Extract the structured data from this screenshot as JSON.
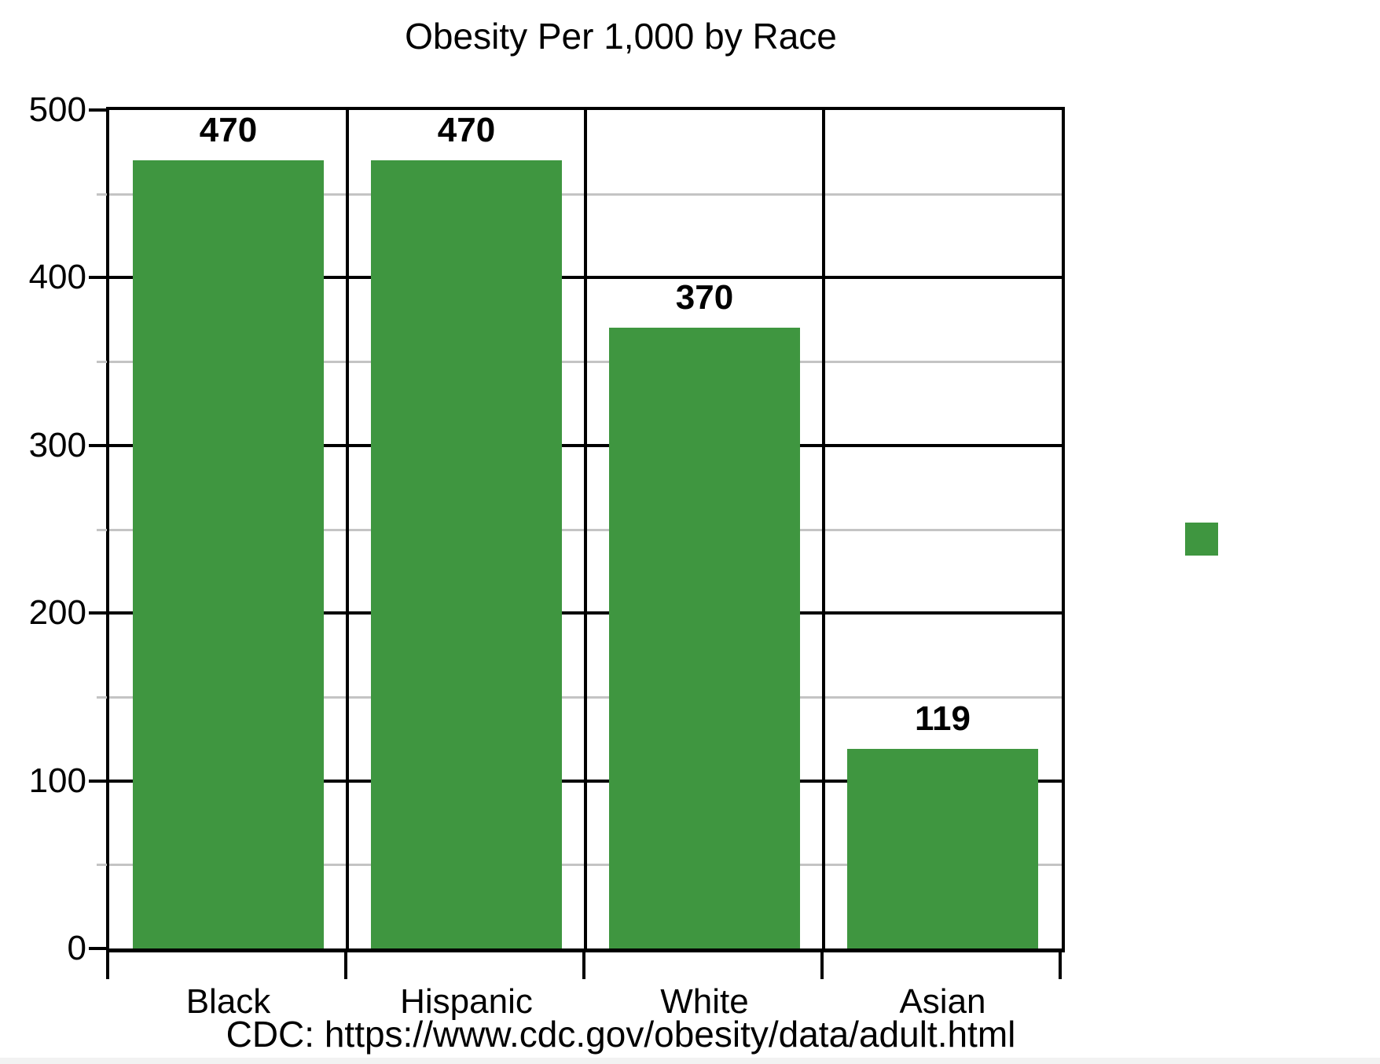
{
  "page": {
    "background": "#ffffff",
    "footer_strip_color": "#f2f2f2"
  },
  "chart_data": {
    "type": "bar",
    "title": "Obesity Per 1,000 by Race",
    "categories": [
      "Black",
      "Hispanic",
      "White",
      "Asian"
    ],
    "values": [
      470,
      470,
      370,
      119
    ],
    "bar_value_labels": [
      "470",
      "470",
      "370",
      "119"
    ],
    "bar_color": "#3F9640",
    "xlabel": "",
    "ylabel": "",
    "ylim": [
      0,
      500
    ],
    "y_major_ticks": [
      0,
      100,
      200,
      300,
      400,
      500
    ],
    "y_major_tick_labels": [
      "0",
      "100",
      "200",
      "300",
      "400",
      "500"
    ],
    "y_minor_ticks": [
      50,
      150,
      250,
      350,
      450
    ],
    "grid": {
      "major_on": true,
      "minor_on": true,
      "major_color": "#000000",
      "minor_color": "#c4c4c4",
      "column_separators": true
    },
    "legend": {
      "position": "right",
      "swatch_color": "#3F9640",
      "label": ""
    },
    "source": "CDC: https://www.cdc.gov/obesity/data/adult.html"
  }
}
